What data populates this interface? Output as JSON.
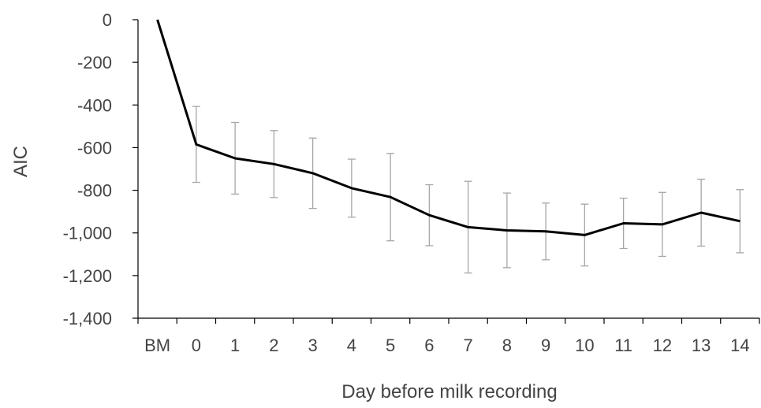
{
  "chart_data": {
    "type": "line",
    "title": "",
    "xlabel": "Day before milk recording",
    "ylabel": "AIC",
    "categories": [
      "BM",
      "0",
      "1",
      "2",
      "3",
      "4",
      "5",
      "6",
      "7",
      "8",
      "9",
      "10",
      "11",
      "12",
      "13",
      "14"
    ],
    "series": [
      {
        "values": [
          0,
          -585,
          -650,
          -677,
          -720,
          -790,
          -832,
          -917,
          -973,
          -988,
          -993,
          -1010,
          -955,
          -960,
          -905,
          -945
        ],
        "error_bars": [
          null,
          178,
          168,
          157,
          165,
          136,
          205,
          143,
          215,
          175,
          133,
          145,
          118,
          150,
          157,
          148
        ]
      }
    ],
    "ylim": [
      -1400,
      0
    ],
    "yticks": [
      0,
      -200,
      -400,
      -600,
      -800,
      -1000,
      -1200,
      -1400
    ],
    "ytick_labels": [
      "0",
      "-200",
      "-400",
      "-600",
      "-800",
      "-1,000",
      "-1,200",
      "-1,400"
    ],
    "grid": false,
    "legend": "none",
    "colors": {
      "line": "#000000",
      "error_bar": "#a6a6a6",
      "axis": "#000000",
      "text": "#444444"
    }
  }
}
